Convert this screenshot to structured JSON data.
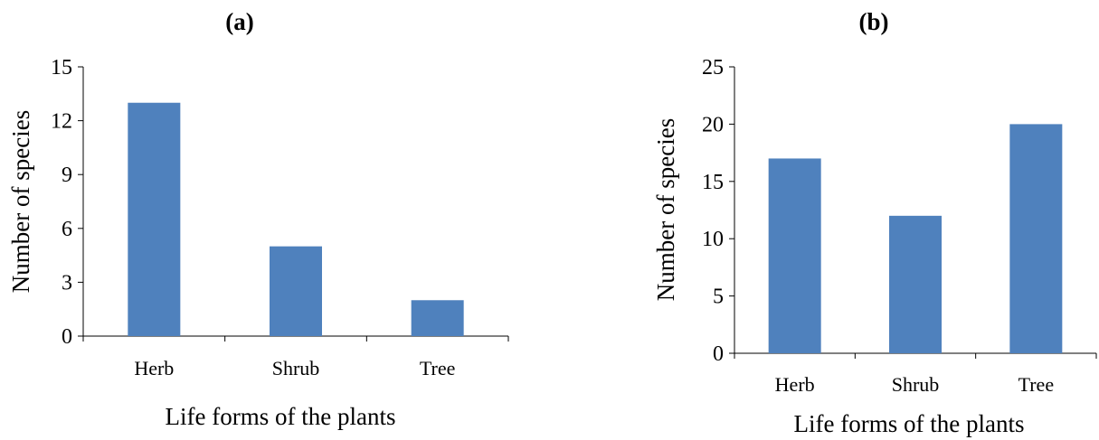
{
  "chart_data": [
    {
      "type": "bar",
      "panel": "(a)",
      "categories": [
        "Herb",
        "Shrub",
        "Tree"
      ],
      "values": [
        13,
        5,
        2
      ],
      "xlabel": "Life forms of the plants",
      "ylabel": "Number of species",
      "ylim": [
        0,
        15
      ],
      "yticks": [
        0,
        3,
        6,
        9,
        12,
        15
      ],
      "bar_color": "#4f81bd",
      "grid": false,
      "legend": "none"
    },
    {
      "type": "bar",
      "panel": "(b)",
      "categories": [
        "Herb",
        "Shrub",
        "Tree"
      ],
      "values": [
        17,
        12,
        20
      ],
      "xlabel": "Life forms of the plants",
      "ylabel": "Number of species",
      "ylim": [
        0,
        25
      ],
      "yticks": [
        0,
        5,
        10,
        15,
        20,
        25
      ],
      "bar_color": "#4f81bd",
      "grid": false,
      "legend": "none"
    }
  ]
}
